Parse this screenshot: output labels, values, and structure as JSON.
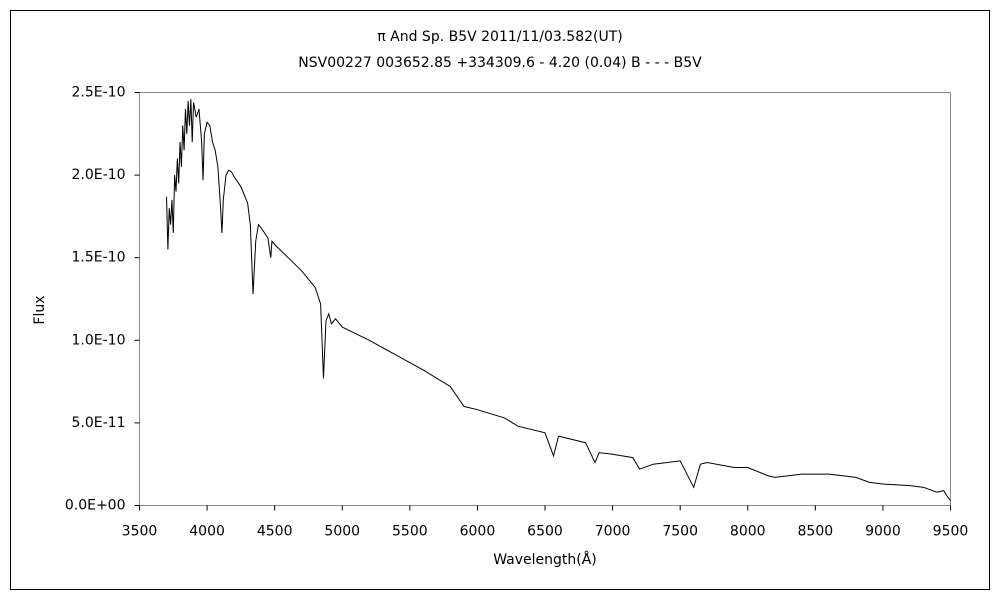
{
  "chart_data": {
    "type": "line",
    "title": "π And    Sp. B5V    2011/11/03.582(UT)",
    "subtitle": "NSV00227 003652.85 +334309.6 - 4.20 (0.04) B - - - B5V",
    "x_label": "Wavelength(Å)",
    "y_label": "Flux",
    "xlim": [
      3500,
      9500
    ],
    "xticks": [
      3500,
      4000,
      4500,
      5000,
      5500,
      6000,
      6500,
      7000,
      7500,
      8000,
      8500,
      9000,
      9500
    ],
    "ylim": [
      0,
      2.5e-10
    ],
    "yticks": [
      {
        "value": 0,
        "label": "0.0E+00"
      },
      {
        "value": 5e-11,
        "label": "5.0E-11"
      },
      {
        "value": 1e-10,
        "label": "1.0E-10"
      },
      {
        "value": 1.5e-10,
        "label": "1.5E-10"
      },
      {
        "value": 2e-10,
        "label": "2.0E-10"
      },
      {
        "value": 2.5e-10,
        "label": "2.5E-10"
      }
    ],
    "grid": false,
    "series": [
      {
        "color": "#000000",
        "x": [
          3700,
          3710,
          3720,
          3730,
          3740,
          3750,
          3760,
          3770,
          3780,
          3790,
          3800,
          3810,
          3820,
          3830,
          3840,
          3850,
          3860,
          3870,
          3880,
          3890,
          3900,
          3920,
          3940,
          3960,
          3970,
          3980,
          4000,
          4020,
          4040,
          4060,
          4080,
          4100,
          4110,
          4120,
          4140,
          4160,
          4180,
          4200,
          4250,
          4300,
          4320,
          4340,
          4360,
          4380,
          4400,
          4450,
          4471,
          4480,
          4500,
          4600,
          4700,
          4800,
          4840,
          4861,
          4880,
          4900,
          4920,
          4950,
          5000,
          5200,
          5400,
          5600,
          5800,
          5900,
          6000,
          6200,
          6300,
          6500,
          6563,
          6600,
          6800,
          6870,
          6900,
          7000,
          7150,
          7200,
          7300,
          7500,
          7600,
          7650,
          7700,
          7900,
          8000,
          8150,
          8200,
          8400,
          8600,
          8800,
          8900,
          9000,
          9200,
          9300,
          9400,
          9450,
          9480,
          9500
        ],
        "values": [
          1.87e-10,
          1.55e-10,
          1.8e-10,
          1.7e-10,
          1.85e-10,
          1.65e-10,
          2e-10,
          1.9e-10,
          2.1e-10,
          1.95e-10,
          2.2e-10,
          2.05e-10,
          2.3e-10,
          2.15e-10,
          2.4e-10,
          2.25e-10,
          2.45e-10,
          2.3e-10,
          2.46e-10,
          2.2e-10,
          2.44e-10,
          2.35e-10,
          2.4e-10,
          2.2e-10,
          1.97e-10,
          2.25e-10,
          2.32e-10,
          2.3e-10,
          2.2e-10,
          2.15e-10,
          2.05e-10,
          1.8e-10,
          1.65e-10,
          1.85e-10,
          2e-10,
          2.03e-10,
          2.02e-10,
          1.99e-10,
          1.93e-10,
          1.83e-10,
          1.7e-10,
          1.28e-10,
          1.6e-10,
          1.7e-10,
          1.68e-10,
          1.62e-10,
          1.5e-10,
          1.6e-10,
          1.58e-10,
          1.5e-10,
          1.42e-10,
          1.32e-10,
          1.22e-10,
          7.7e-11,
          1.12e-10,
          1.16e-10,
          1.1e-10,
          1.13e-10,
          1.08e-10,
          1e-10,
          9.1e-11,
          8.2e-11,
          7.2e-11,
          6e-11,
          5.8e-11,
          5.3e-11,
          4.8e-11,
          4.4e-11,
          3e-11,
          4.2e-11,
          3.8e-11,
          2.6e-11,
          3.2e-11,
          3.1e-11,
          2.9e-11,
          2.2e-11,
          2.5e-11,
          2.7e-11,
          1.1e-11,
          2.5e-11,
          2.6e-11,
          2.3e-11,
          2.3e-11,
          1.8e-11,
          1.7e-11,
          1.9e-11,
          1.9e-11,
          1.7e-11,
          1.4e-11,
          1.3e-11,
          1.2e-11,
          1.1e-11,
          8e-12,
          9e-12,
          5e-12,
          3e-12
        ]
      }
    ]
  }
}
